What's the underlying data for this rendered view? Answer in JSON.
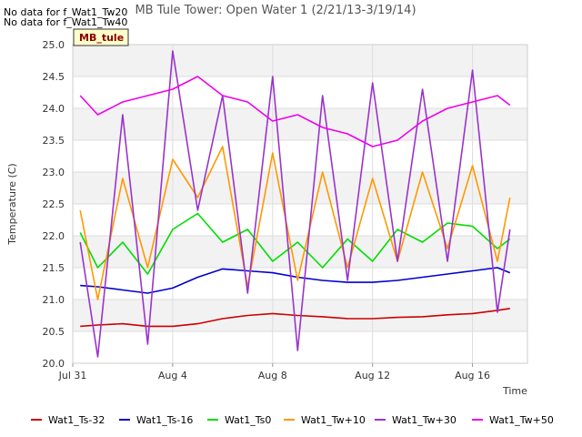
{
  "notes": [
    "No data for f_Wat1_Tw20",
    "No data for f_Wat1_Tw40"
  ],
  "badge": "MB_tule",
  "chart_data": {
    "type": "line",
    "title": "MB Tule Tower: Open Water 1 (2/21/13-3/19/14)",
    "xlabel": "Time",
    "ylabel": "Temperature (C)",
    "xlim": [
      0,
      18.2
    ],
    "ylim": [
      20.0,
      25.0
    ],
    "x_ticks": [
      {
        "value": 0,
        "label": "Jul 31"
      },
      {
        "value": 4,
        "label": "Aug 4"
      },
      {
        "value": 8,
        "label": "Aug 8"
      },
      {
        "value": 12,
        "label": "Aug 12"
      },
      {
        "value": 16,
        "label": "Aug 16"
      }
    ],
    "y_ticks": [
      20.0,
      20.5,
      21.0,
      21.5,
      22.0,
      22.5,
      23.0,
      23.5,
      24.0,
      24.5,
      25.0
    ],
    "grid": true,
    "legend_position": "bottom",
    "x": [
      0.3,
      1.0,
      2.0,
      3.0,
      4.0,
      5.0,
      6.0,
      7.0,
      8.0,
      9.0,
      10.0,
      11.0,
      12.0,
      13.0,
      14.0,
      15.0,
      16.0,
      17.0,
      17.5
    ],
    "series": [
      {
        "name": "Wat1_Ts-32",
        "color": "#cc0000",
        "values": [
          20.58,
          20.6,
          20.62,
          20.58,
          20.58,
          20.62,
          20.7,
          20.75,
          20.78,
          20.75,
          20.73,
          20.7,
          20.7,
          20.72,
          20.73,
          20.76,
          20.78,
          20.83,
          20.86
        ]
      },
      {
        "name": "Wat1_Ts-16",
        "color": "#0000cc",
        "values": [
          21.22,
          21.2,
          21.15,
          21.1,
          21.18,
          21.35,
          21.48,
          21.45,
          21.42,
          21.35,
          21.3,
          21.27,
          21.27,
          21.3,
          21.35,
          21.4,
          21.45,
          21.5,
          21.42
        ]
      },
      {
        "name": "Wat1_Ts0",
        "color": "#00dd00",
        "values": [
          22.05,
          21.5,
          21.9,
          21.4,
          22.1,
          22.35,
          21.9,
          22.1,
          21.6,
          21.9,
          21.5,
          21.95,
          21.6,
          22.1,
          21.9,
          22.2,
          22.15,
          21.8,
          21.95
        ]
      },
      {
        "name": "Wat1_Tw+10",
        "color": "#ff9900",
        "values": [
          22.4,
          21.0,
          22.9,
          21.5,
          23.2,
          22.6,
          23.4,
          21.2,
          23.3,
          21.3,
          23.0,
          21.5,
          22.9,
          21.6,
          23.0,
          21.8,
          23.1,
          21.6,
          22.6
        ]
      },
      {
        "name": "Wat1_Tw+30",
        "color": "#9933cc",
        "values": [
          21.9,
          20.1,
          23.9,
          20.3,
          24.9,
          22.4,
          24.2,
          21.1,
          24.5,
          20.2,
          24.2,
          21.3,
          24.4,
          21.6,
          24.3,
          21.6,
          24.6,
          20.8,
          22.1
        ]
      },
      {
        "name": "Wat1_Tw+50",
        "color": "#ee00ee",
        "values": [
          24.2,
          23.9,
          24.1,
          24.2,
          24.3,
          24.5,
          24.2,
          24.1,
          23.8,
          23.9,
          23.7,
          23.6,
          23.4,
          23.5,
          23.8,
          24.0,
          24.1,
          24.2,
          24.05
        ]
      }
    ]
  }
}
